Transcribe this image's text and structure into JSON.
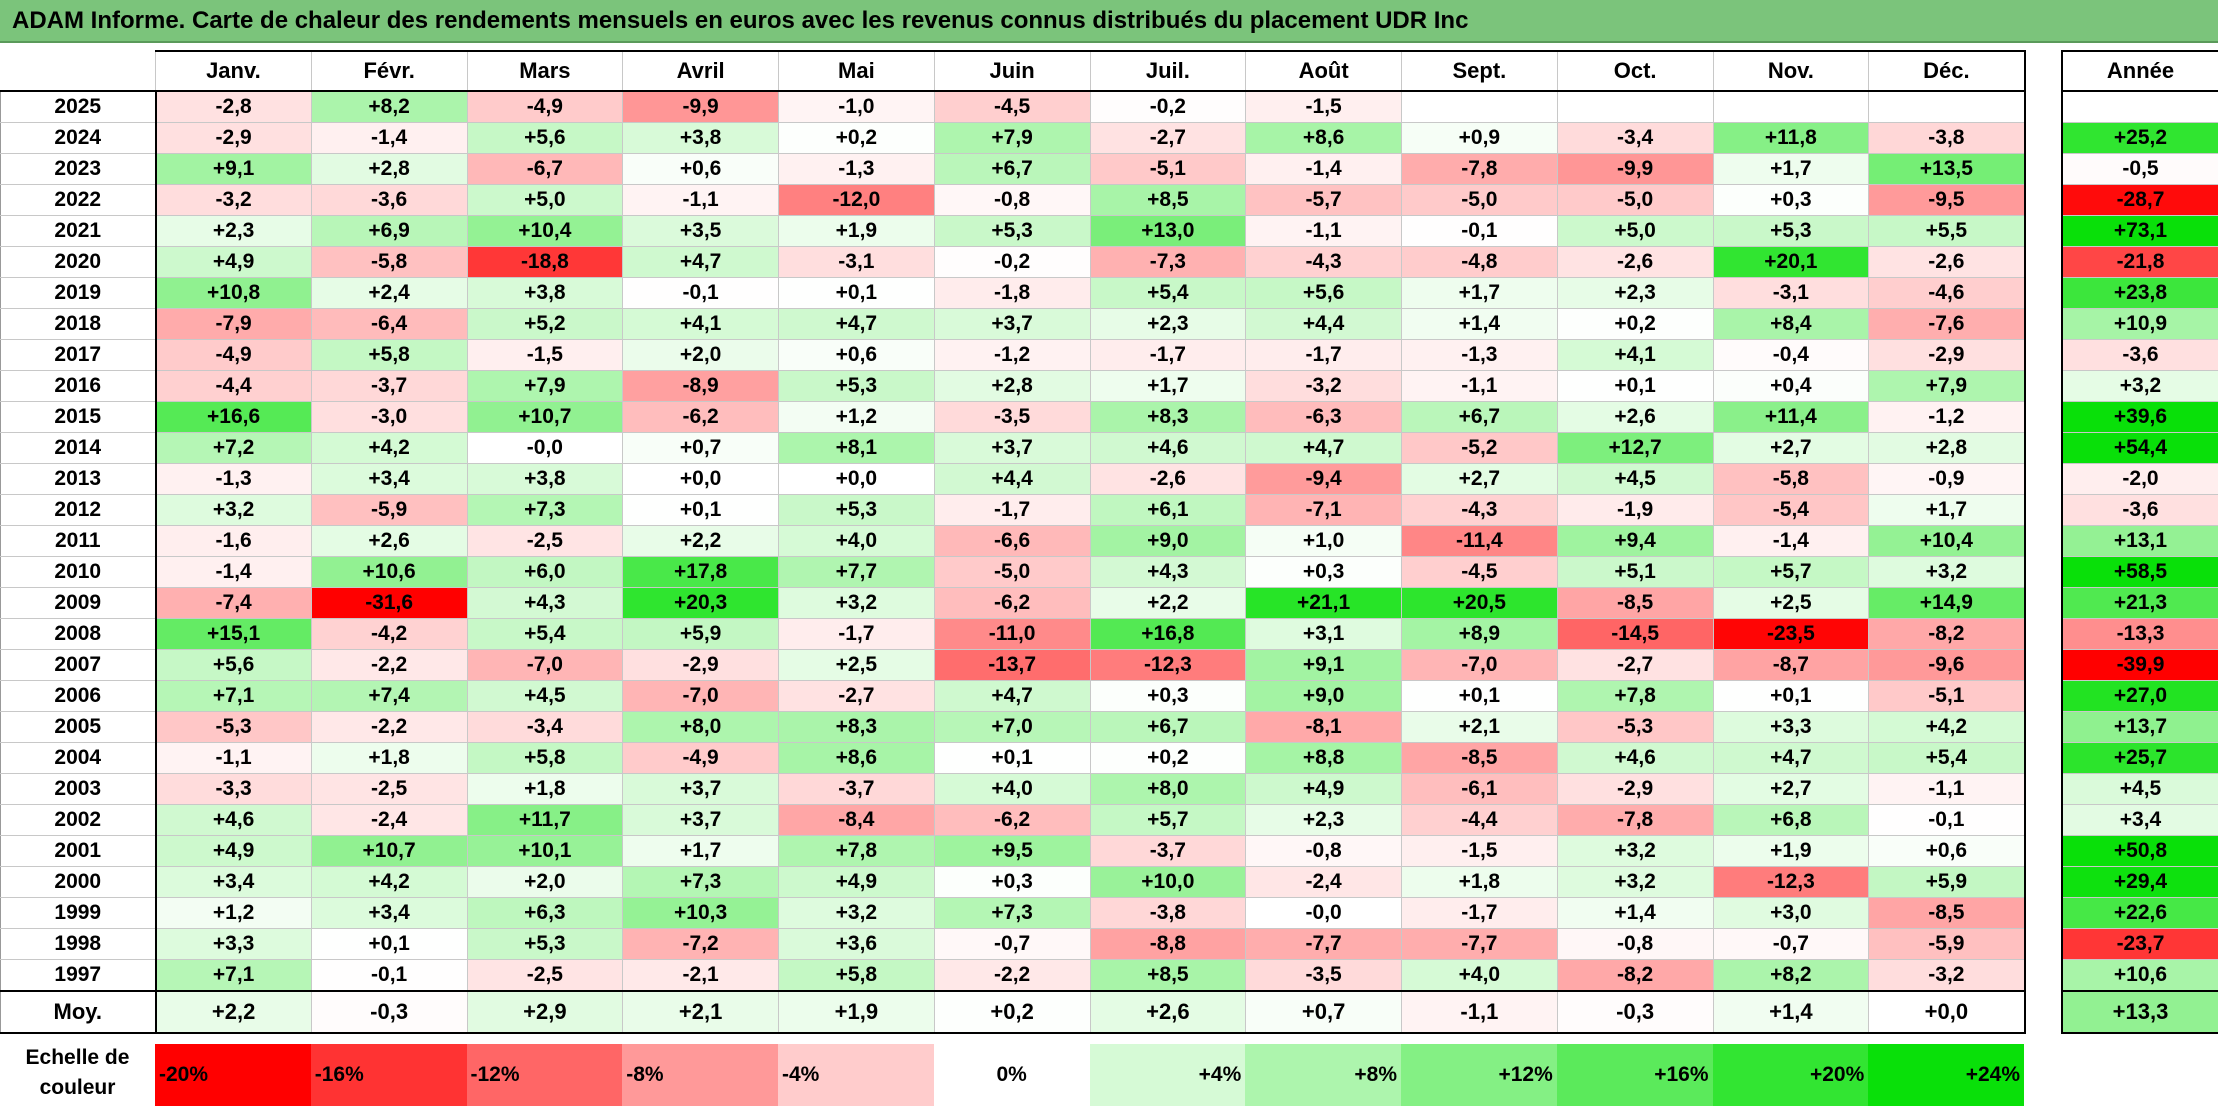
{
  "title": "ADAM Informe. Carte de chaleur des rendements mensuels en euros avec les revenus connus distribués du placement UDR Inc",
  "chart_data": {
    "type": "heatmap",
    "title": "ADAM Informe. Carte de chaleur des rendements mensuels en euros avec les revenus connus distribués du placement UDR Inc",
    "months": [
      "Janv.",
      "Févr.",
      "Mars",
      "Avril",
      "Mai",
      "Juin",
      "Juil.",
      "Août",
      "Sept.",
      "Oct.",
      "Nov.",
      "Déc."
    ],
    "annual_label": "Année",
    "rows": [
      {
        "year": "2025",
        "values": [
          "-2,8",
          "+8,2",
          "-4,9",
          "-9,9",
          "-1,0",
          "-4,5",
          "-0,2",
          "-1,5",
          "",
          "",
          "",
          ""
        ],
        "annual": ""
      },
      {
        "year": "2024",
        "values": [
          "-2,9",
          "-1,4",
          "+5,6",
          "+3,8",
          "+0,2",
          "+7,9",
          "-2,7",
          "+8,6",
          "+0,9",
          "-3,4",
          "+11,8",
          "-3,8"
        ],
        "annual": "+25,2"
      },
      {
        "year": "2023",
        "values": [
          "+9,1",
          "+2,8",
          "-6,7",
          "+0,6",
          "-1,3",
          "+6,7",
          "-5,1",
          "-1,4",
          "-7,8",
          "-9,9",
          "+1,7",
          "+13,5"
        ],
        "annual": "-0,5"
      },
      {
        "year": "2022",
        "values": [
          "-3,2",
          "-3,6",
          "+5,0",
          "-1,1",
          "-12,0",
          "-0,8",
          "+8,5",
          "-5,7",
          "-5,0",
          "-5,0",
          "+0,3",
          "-9,5"
        ],
        "annual": "-28,7"
      },
      {
        "year": "2021",
        "values": [
          "+2,3",
          "+6,9",
          "+10,4",
          "+3,5",
          "+1,9",
          "+5,3",
          "+13,0",
          "-1,1",
          "-0,1",
          "+5,0",
          "+5,3",
          "+5,5"
        ],
        "annual": "+73,1"
      },
      {
        "year": "2020",
        "values": [
          "+4,9",
          "-5,8",
          "-18,8",
          "+4,7",
          "-3,1",
          "-0,2",
          "-7,3",
          "-4,3",
          "-4,8",
          "-2,6",
          "+20,1",
          "-2,6"
        ],
        "annual": "-21,8"
      },
      {
        "year": "2019",
        "values": [
          "+10,8",
          "+2,4",
          "+3,8",
          "-0,1",
          "+0,1",
          "-1,8",
          "+5,4",
          "+5,6",
          "+1,7",
          "+2,3",
          "-3,1",
          "-4,6"
        ],
        "annual": "+23,8"
      },
      {
        "year": "2018",
        "values": [
          "-7,9",
          "-6,4",
          "+5,2",
          "+4,1",
          "+4,7",
          "+3,7",
          "+2,3",
          "+4,4",
          "+1,4",
          "+0,2",
          "+8,4",
          "-7,6"
        ],
        "annual": "+10,9"
      },
      {
        "year": "2017",
        "values": [
          "-4,9",
          "+5,8",
          "-1,5",
          "+2,0",
          "+0,6",
          "-1,2",
          "-1,7",
          "-1,7",
          "-1,3",
          "+4,1",
          "-0,4",
          "-2,9"
        ],
        "annual": "-3,6"
      },
      {
        "year": "2016",
        "values": [
          "-4,4",
          "-3,7",
          "+7,9",
          "-8,9",
          "+5,3",
          "+2,8",
          "+1,7",
          "-3,2",
          "-1,1",
          "+0,1",
          "+0,4",
          "+7,9"
        ],
        "annual": "+3,2"
      },
      {
        "year": "2015",
        "values": [
          "+16,6",
          "-3,0",
          "+10,7",
          "-6,2",
          "+1,2",
          "-3,5",
          "+8,3",
          "-6,3",
          "+6,7",
          "+2,6",
          "+11,4",
          "-1,2"
        ],
        "annual": "+39,6"
      },
      {
        "year": "2014",
        "values": [
          "+7,2",
          "+4,2",
          "-0,0",
          "+0,7",
          "+8,1",
          "+3,7",
          "+4,6",
          "+4,7",
          "-5,2",
          "+12,7",
          "+2,7",
          "+2,8"
        ],
        "annual": "+54,4"
      },
      {
        "year": "2013",
        "values": [
          "-1,3",
          "+3,4",
          "+3,8",
          "+0,0",
          "+0,0",
          "+4,4",
          "-2,6",
          "-9,4",
          "+2,7",
          "+4,5",
          "-5,8",
          "-0,9"
        ],
        "annual": "-2,0"
      },
      {
        "year": "2012",
        "values": [
          "+3,2",
          "-5,9",
          "+7,3",
          "+0,1",
          "+5,3",
          "-1,7",
          "+6,1",
          "-7,1",
          "-4,3",
          "-1,9",
          "-5,4",
          "+1,7"
        ],
        "annual": "-3,6"
      },
      {
        "year": "2011",
        "values": [
          "-1,6",
          "+2,6",
          "-2,5",
          "+2,2",
          "+4,0",
          "-6,6",
          "+9,0",
          "+1,0",
          "-11,4",
          "+9,4",
          "-1,4",
          "+10,4"
        ],
        "annual": "+13,1"
      },
      {
        "year": "2010",
        "values": [
          "-1,4",
          "+10,6",
          "+6,0",
          "+17,8",
          "+7,7",
          "-5,0",
          "+4,3",
          "+0,3",
          "-4,5",
          "+5,1",
          "+5,7",
          "+3,2"
        ],
        "annual": "+58,5"
      },
      {
        "year": "2009",
        "values": [
          "-7,4",
          "-31,6",
          "+4,3",
          "+20,3",
          "+3,2",
          "-6,2",
          "+2,2",
          "+21,1",
          "+20,5",
          "-8,5",
          "+2,5",
          "+14,9"
        ],
        "annual": "+21,3"
      },
      {
        "year": "2008",
        "values": [
          "+15,1",
          "-4,2",
          "+5,4",
          "+5,9",
          "-1,7",
          "-11,0",
          "+16,8",
          "+3,1",
          "+8,9",
          "-14,5",
          "-23,5",
          "-8,2"
        ],
        "annual": "-13,3"
      },
      {
        "year": "2007",
        "values": [
          "+5,6",
          "-2,2",
          "-7,0",
          "-2,9",
          "+2,5",
          "-13,7",
          "-12,3",
          "+9,1",
          "-7,0",
          "-2,7",
          "-8,7",
          "-9,6"
        ],
        "annual": "-39,9"
      },
      {
        "year": "2006",
        "values": [
          "+7,1",
          "+7,4",
          "+4,5",
          "-7,0",
          "-2,7",
          "+4,7",
          "+0,3",
          "+9,0",
          "+0,1",
          "+7,8",
          "+0,1",
          "-5,1"
        ],
        "annual": "+27,0"
      },
      {
        "year": "2005",
        "values": [
          "-5,3",
          "-2,2",
          "-3,4",
          "+8,0",
          "+8,3",
          "+7,0",
          "+6,7",
          "-8,1",
          "+2,1",
          "-5,3",
          "+3,3",
          "+4,2"
        ],
        "annual": "+13,7"
      },
      {
        "year": "2004",
        "values": [
          "-1,1",
          "+1,8",
          "+5,8",
          "-4,9",
          "+8,6",
          "+0,1",
          "+0,2",
          "+8,8",
          "-8,5",
          "+4,6",
          "+4,7",
          "+5,4"
        ],
        "annual": "+25,7"
      },
      {
        "year": "2003",
        "values": [
          "-3,3",
          "-2,5",
          "+1,8",
          "+3,7",
          "-3,7",
          "+4,0",
          "+8,0",
          "+4,9",
          "-6,1",
          "-2,9",
          "+2,7",
          "-1,1"
        ],
        "annual": "+4,5"
      },
      {
        "year": "2002",
        "values": [
          "+4,6",
          "-2,4",
          "+11,7",
          "+3,7",
          "-8,4",
          "-6,2",
          "+5,7",
          "+2,3",
          "-4,4",
          "-7,8",
          "+6,8",
          "-0,1"
        ],
        "annual": "+3,4"
      },
      {
        "year": "2001",
        "values": [
          "+4,9",
          "+10,7",
          "+10,1",
          "+1,7",
          "+7,8",
          "+9,5",
          "-3,7",
          "-0,8",
          "-1,5",
          "+3,2",
          "+1,9",
          "+0,6"
        ],
        "annual": "+50,8"
      },
      {
        "year": "2000",
        "values": [
          "+3,4",
          "+4,2",
          "+2,0",
          "+7,3",
          "+4,9",
          "+0,3",
          "+10,0",
          "-2,4",
          "+1,8",
          "+3,2",
          "-12,3",
          "+5,9"
        ],
        "annual": "+29,4"
      },
      {
        "year": "1999",
        "values": [
          "+1,2",
          "+3,4",
          "+6,3",
          "+10,3",
          "+3,2",
          "+7,3",
          "-3,8",
          "-0,0",
          "-1,7",
          "+1,4",
          "+3,0",
          "-8,5"
        ],
        "annual": "+22,6"
      },
      {
        "year": "1998",
        "values": [
          "+3,3",
          "+0,1",
          "+5,3",
          "-7,2",
          "+3,6",
          "-0,7",
          "-8,8",
          "-7,7",
          "-7,7",
          "-0,8",
          "-0,7",
          "-5,9"
        ],
        "annual": "-23,7"
      },
      {
        "year": "1997",
        "values": [
          "+7,1",
          "-0,1",
          "-2,5",
          "-2,1",
          "+5,8",
          "-2,2",
          "+8,5",
          "-3,5",
          "+4,0",
          "-8,2",
          "+8,2",
          "-3,2"
        ],
        "annual": "+10,6"
      }
    ],
    "average": {
      "label": "Moy.",
      "values": [
        "+2,2",
        "-0,3",
        "+2,9",
        "+2,1",
        "+1,9",
        "+0,2",
        "+2,6",
        "+0,7",
        "-1,1",
        "-0,3",
        "+1,4",
        "+0,0"
      ],
      "annual": "+13,3"
    },
    "scale": {
      "label": "Echelle de couleur",
      "stops": [
        {
          "label": "-20%",
          "color": "#ff0000"
        },
        {
          "label": "-16%",
          "color": "#ff3333"
        },
        {
          "label": "-12%",
          "color": "#ff6666"
        },
        {
          "label": "-8%",
          "color": "#ff9999"
        },
        {
          "label": "-4%",
          "color": "#ffcccc"
        },
        {
          "label": "0%",
          "color": "#ffffff"
        },
        {
          "label": "+4%",
          "color": "#d6fad6"
        },
        {
          "label": "+8%",
          "color": "#adf5ad"
        },
        {
          "label": "+12%",
          "color": "#84f084"
        },
        {
          "label": "+16%",
          "color": "#5bea5b"
        },
        {
          "label": "+20%",
          "color": "#32e532"
        },
        {
          "label": "+24%",
          "color": "#09e009"
        }
      ]
    }
  }
}
